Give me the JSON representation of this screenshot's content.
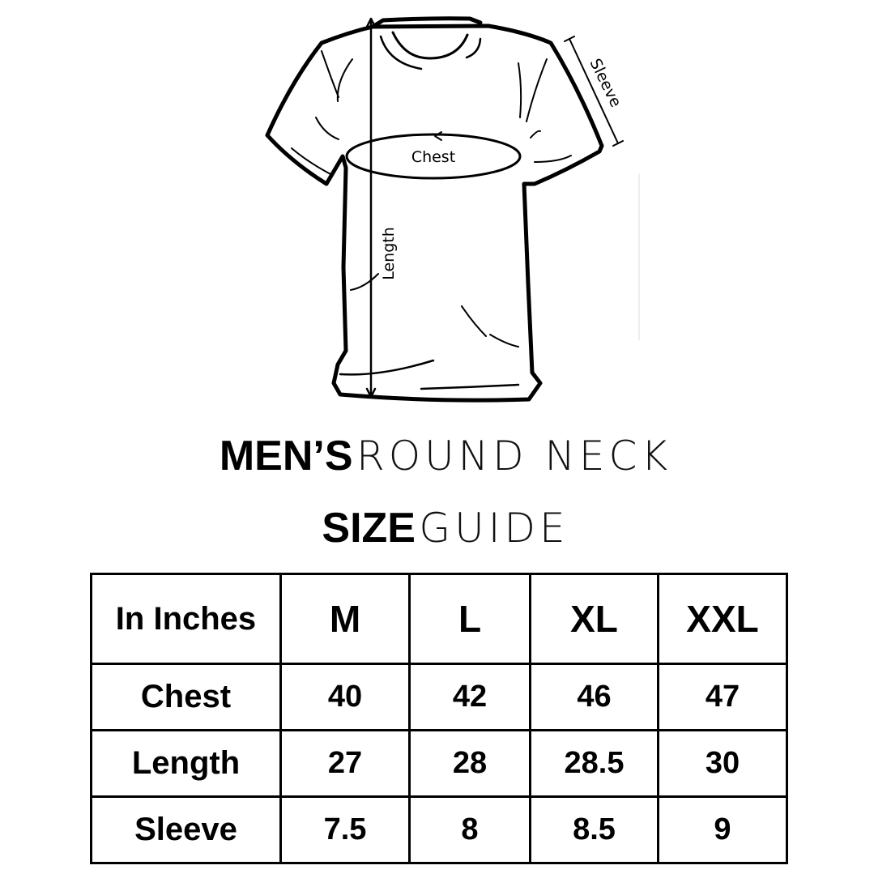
{
  "diagram": {
    "labels": {
      "chest": "Chest",
      "length": "Length",
      "sleeve": "Sleeve"
    }
  },
  "title": {
    "line1_bold": "MEN’S",
    "line1_light": "ROUND NECK",
    "line2_bold": "SIZE",
    "line2_light": "GUIDE"
  },
  "table": {
    "header": [
      "In Inches",
      "M",
      "L",
      "XL",
      "XXL"
    ],
    "rows": [
      [
        "Chest",
        "40",
        "42",
        "46",
        "47"
      ],
      [
        "Length",
        "27",
        "28",
        "28.5",
        "30"
      ],
      [
        "Sleeve",
        "7.5",
        "8",
        "8.5",
        "9"
      ]
    ]
  }
}
